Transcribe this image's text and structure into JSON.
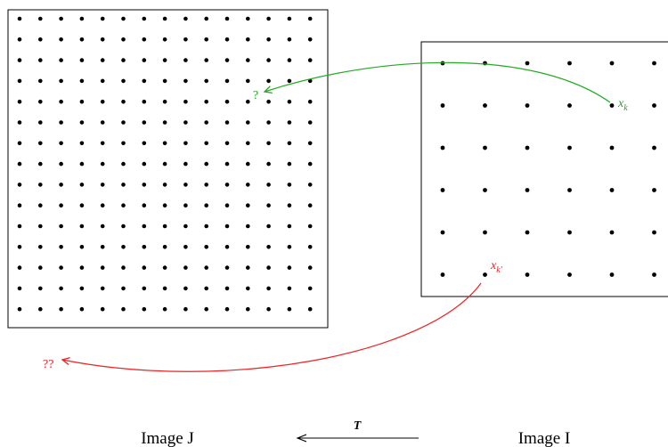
{
  "image_j": {
    "label": "Image J",
    "grid_rows": 15,
    "grid_cols": 15
  },
  "image_i": {
    "label": "Image I",
    "grid_rows": 6,
    "grid_cols": 6
  },
  "transform": {
    "label": "T"
  },
  "mapped_point_green": {
    "source_symbol": "x",
    "source_subscript": "k",
    "target_label": "?",
    "color": "#22aa22"
  },
  "mapped_point_red": {
    "source_symbol": "x",
    "source_subscript": "k'",
    "target_label": "??",
    "color": "#ee2222"
  }
}
